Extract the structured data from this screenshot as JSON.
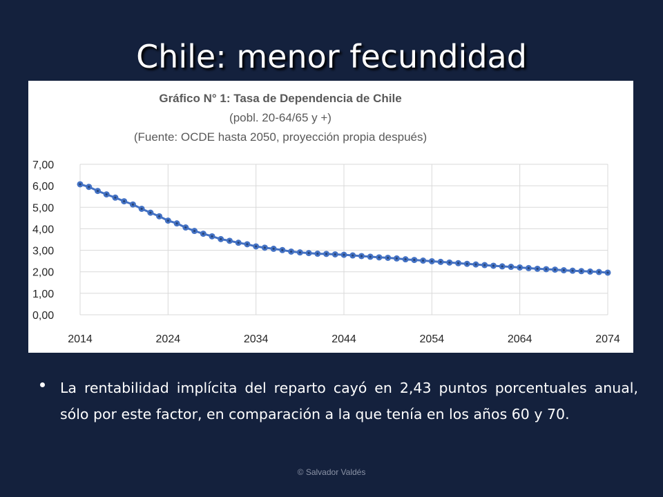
{
  "slide": {
    "title": "Chile: menor fecundidad",
    "bullet": "La rentabilidad implícita  del reparto cayó en 2,43 puntos porcentuales anual, sólo por este factor, en comparación a la que tenía en los años 60 y 70.",
    "footer": "© Salvador Valdés"
  },
  "colors": {
    "background": "#14213d",
    "series": "#4472c4",
    "point_center": "#264478",
    "gridline": "#d9d9d9"
  },
  "chart_data": {
    "type": "line",
    "title": "Gráfico N° 1: Tasa de Dependencia de Chile",
    "subtitle": "(pobl. 20-64/65 y +)",
    "source_note": "(Fuente: OCDE hasta 2050, proyección propia después)",
    "xlabel": "",
    "ylabel": "",
    "xlim": [
      2014,
      2074
    ],
    "ylim": [
      0,
      7
    ],
    "grid": true,
    "legend": "none",
    "x_ticks": [
      "2014",
      "2024",
      "2034",
      "2044",
      "2054",
      "2064",
      "2074"
    ],
    "y_ticks": [
      "0,00",
      "1,00",
      "2,00",
      "3,00",
      "4,00",
      "5,00",
      "6,00",
      "7,00"
    ],
    "series": [
      {
        "x": [
          2014,
          2015,
          2016,
          2017,
          2018,
          2019,
          2020,
          2021,
          2022,
          2023,
          2024,
          2025,
          2026,
          2027,
          2028,
          2029,
          2030,
          2031,
          2032,
          2033,
          2034,
          2035,
          2036,
          2037,
          2038,
          2039,
          2040,
          2041,
          2042,
          2043,
          2044,
          2045,
          2046,
          2047,
          2048,
          2049,
          2050,
          2051,
          2052,
          2053,
          2054,
          2055,
          2056,
          2057,
          2058,
          2059,
          2060,
          2061,
          2062,
          2063,
          2064,
          2065,
          2066,
          2067,
          2068,
          2069,
          2070,
          2071,
          2072,
          2073,
          2074
        ],
        "values": [
          6.07,
          5.95,
          5.76,
          5.6,
          5.45,
          5.28,
          5.13,
          4.93,
          4.75,
          4.58,
          4.38,
          4.25,
          4.06,
          3.9,
          3.77,
          3.65,
          3.52,
          3.44,
          3.35,
          3.28,
          3.18,
          3.12,
          3.07,
          3.01,
          2.94,
          2.9,
          2.87,
          2.84,
          2.83,
          2.81,
          2.79,
          2.76,
          2.73,
          2.7,
          2.67,
          2.65,
          2.62,
          2.58,
          2.55,
          2.52,
          2.49,
          2.46,
          2.43,
          2.4,
          2.37,
          2.34,
          2.31,
          2.28,
          2.25,
          2.23,
          2.2,
          2.17,
          2.14,
          2.12,
          2.1,
          2.07,
          2.05,
          2.03,
          2.01,
          1.99,
          1.96
        ]
      }
    ]
  }
}
